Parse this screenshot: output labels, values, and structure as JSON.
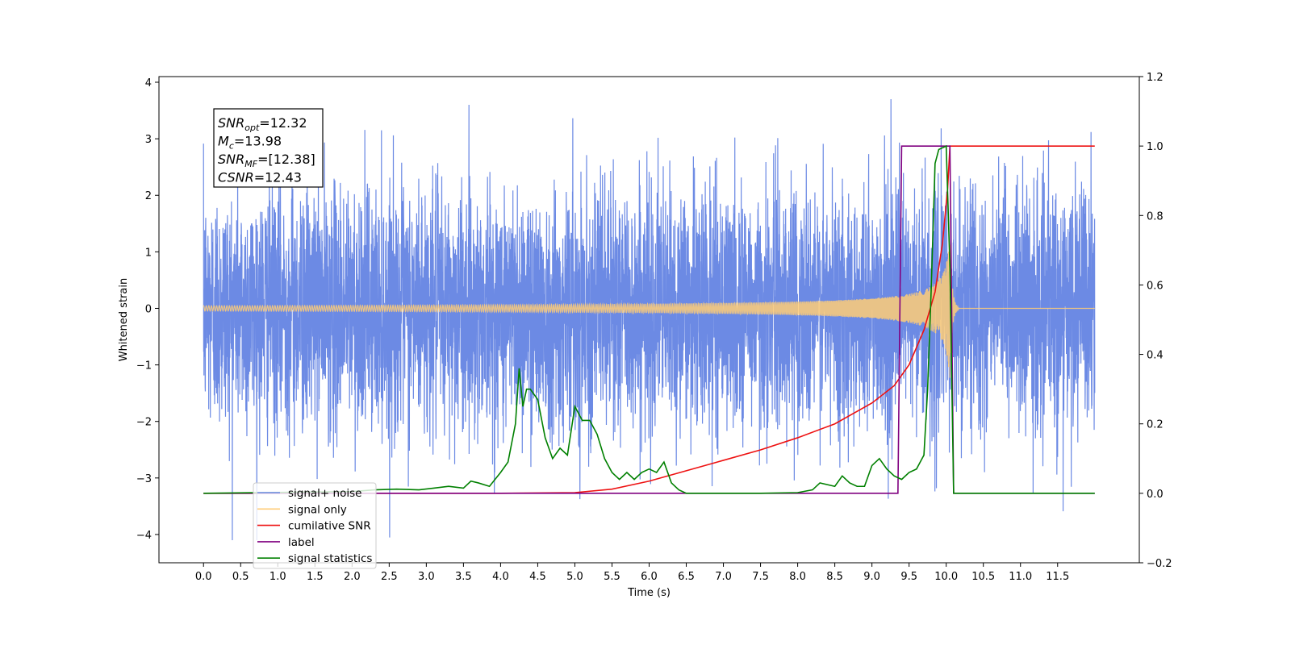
{
  "chart_data": {
    "type": "line",
    "xlabel": "Time (s)",
    "ylabel_left": "Whitened strain",
    "ylabel_right": "",
    "xlim": [
      -0.6,
      12.6
    ],
    "ylim_left": [
      -4.5,
      4.1
    ],
    "ylim_right": [
      -0.2,
      1.2
    ],
    "x_ticks": [
      "0.0",
      "0.5",
      "1.0",
      "1.5",
      "2.0",
      "2.5",
      "3.0",
      "3.5",
      "4.0",
      "4.5",
      "5.0",
      "5.5",
      "6.0",
      "6.5",
      "7.0",
      "7.5",
      "8.0",
      "8.5",
      "9.0",
      "9.5",
      "10.0",
      "10.5",
      "11.0",
      "11.5"
    ],
    "y_ticks_left": [
      4,
      3,
      2,
      1,
      0,
      -1,
      -2,
      -3,
      -4
    ],
    "y_ticks_right": [
      "1.2",
      "1.0",
      "0.8",
      "0.6",
      "0.4",
      "0.2",
      "0.0",
      "−0.2"
    ],
    "grid": false,
    "legend_position": "lower-left",
    "annotation": {
      "lines": [
        {
          "sym": "SNR",
          "sub": "opt",
          "val": "=12.32"
        },
        {
          "sym": "M",
          "sub": "c",
          "val": "=13.98"
        },
        {
          "sym": "SNR",
          "sub": "MF",
          "val": "=[12.38]"
        },
        {
          "sym": "CSNR",
          "sub": "",
          "val": "=12.43"
        }
      ]
    },
    "series": [
      {
        "name": "signal+ noise",
        "axis": "left",
        "color": "#6c8ae4",
        "kind": "noise",
        "x_range": [
          0.0,
          12.0
        ],
        "amplitude_range": [
          -4.1,
          3.7
        ]
      },
      {
        "name": "signal only",
        "axis": "left",
        "color": "#ffcc77",
        "kind": "chirp",
        "x_range": [
          0.0,
          12.0
        ],
        "merger_time": 10.05,
        "peak_amplitude": 1.3
      },
      {
        "name": "cumilative SNR",
        "axis": "right",
        "color": "#ee1111",
        "x": [
          0.0,
          4.0,
          5.0,
          5.5,
          6.0,
          6.5,
          7.0,
          7.5,
          8.0,
          8.5,
          9.0,
          9.3,
          9.5,
          9.7,
          9.85,
          9.95,
          10.02,
          10.05,
          11.0,
          12.0
        ],
        "values": [
          0.0,
          0.0,
          0.002,
          0.012,
          0.035,
          0.065,
          0.095,
          0.125,
          0.16,
          0.2,
          0.26,
          0.31,
          0.37,
          0.47,
          0.58,
          0.72,
          0.88,
          1.0,
          1.0,
          1.0
        ]
      },
      {
        "name": "label",
        "axis": "right",
        "color": "#800080",
        "x": [
          0.0,
          9.35,
          9.4,
          10.05,
          10.1,
          12.0
        ],
        "values": [
          0.0,
          0.0,
          1.0,
          1.0,
          0.0,
          0.0
        ]
      },
      {
        "name": "signal statistics",
        "axis": "right",
        "color": "#008000",
        "x": [
          0.0,
          2.0,
          2.3,
          2.6,
          2.9,
          3.1,
          3.3,
          3.5,
          3.6,
          3.7,
          3.85,
          4.0,
          4.1,
          4.2,
          4.25,
          4.3,
          4.35,
          4.4,
          4.5,
          4.6,
          4.7,
          4.8,
          4.9,
          5.0,
          5.1,
          5.2,
          5.3,
          5.4,
          5.5,
          5.6,
          5.7,
          5.8,
          5.9,
          6.0,
          6.1,
          6.2,
          6.3,
          6.4,
          6.5,
          7.5,
          8.0,
          8.2,
          8.3,
          8.5,
          8.6,
          8.7,
          8.8,
          8.9,
          9.0,
          9.1,
          9.2,
          9.3,
          9.4,
          9.5,
          9.6,
          9.7,
          9.75,
          9.8,
          9.85,
          9.9,
          10.0,
          10.05,
          10.1,
          10.15,
          12.0
        ],
        "values": [
          0.0,
          0.005,
          0.01,
          0.012,
          0.01,
          0.015,
          0.02,
          0.015,
          0.035,
          0.03,
          0.02,
          0.06,
          0.09,
          0.2,
          0.36,
          0.25,
          0.3,
          0.3,
          0.27,
          0.16,
          0.1,
          0.13,
          0.11,
          0.25,
          0.21,
          0.21,
          0.17,
          0.1,
          0.06,
          0.04,
          0.06,
          0.04,
          0.06,
          0.07,
          0.06,
          0.09,
          0.03,
          0.01,
          0.0,
          0.0,
          0.002,
          0.01,
          0.03,
          0.02,
          0.05,
          0.03,
          0.02,
          0.02,
          0.08,
          0.1,
          0.07,
          0.05,
          0.04,
          0.06,
          0.07,
          0.11,
          0.3,
          0.6,
          0.95,
          0.99,
          1.0,
          0.65,
          0.0,
          0.0,
          0.0
        ]
      }
    ]
  }
}
